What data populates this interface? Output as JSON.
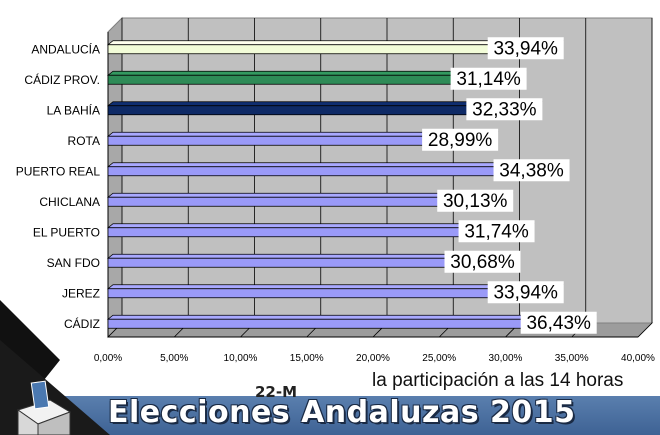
{
  "chart_data": {
    "type": "bar",
    "orientation": "horizontal",
    "categories": [
      "ANDALUCÍA",
      "CÁDIZ PROV.",
      "LA BAHÍA",
      "ROTA",
      "PUERTO REAL",
      "CHICLANA",
      "EL PUERTO",
      "SAN FDO",
      "JEREZ",
      "CÁDIZ"
    ],
    "values": [
      33.94,
      31.14,
      32.33,
      28.99,
      34.38,
      30.13,
      31.74,
      30.68,
      33.94,
      36.43
    ],
    "data_labels": [
      "33,94%",
      "31,14%",
      "32,33%",
      "28,99%",
      "34,38%",
      "30,13%",
      "31,74%",
      "30,68%",
      "33,94%",
      "36,43%"
    ],
    "bar_colors": [
      "#f2fcd8",
      "#2e8b57",
      "#0e2a66",
      "#9a9af8",
      "#9a9af8",
      "#9a9af8",
      "#9a9af8",
      "#9a9af8",
      "#9a9af8",
      "#9a9af8"
    ],
    "xlim": [
      0,
      40
    ],
    "xticks": [
      "0,00%",
      "5,00%",
      "10,00%",
      "15,00%",
      "20,00%",
      "25,00%",
      "30,00%",
      "35,00%",
      "40,00%"
    ],
    "grid": true,
    "title": "",
    "xlabel": "",
    "ylabel": ""
  },
  "caption": "la participación a las 14 horas",
  "banner": {
    "tag": "22-M",
    "title": "Elecciones Andaluzas 2015"
  },
  "colors": {
    "plot_background": "#c0c0c0",
    "banner": "#4a6fa0",
    "default_bar": "#9a9af8"
  }
}
